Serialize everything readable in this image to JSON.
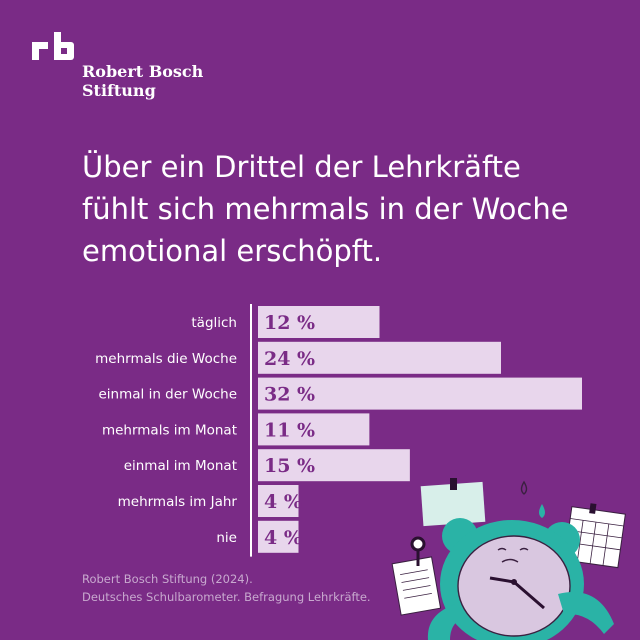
{
  "brand": {
    "line1": "Robert Bosch",
    "line2": "Stiftung"
  },
  "headline": {
    "line1": "Über ein Drittel der Lehrkräfte",
    "line2": "fühlt sich mehrmals in der Woche",
    "line3": "emotional erschöpft."
  },
  "colors": {
    "background": "#7a2b86",
    "bar": "#e8d6ec",
    "bar_label": "#7a2b86",
    "text": "#ffffff",
    "footer": "#c8a9cf",
    "illustration_teal": "#2ab3a6"
  },
  "chart_data": {
    "type": "bar",
    "orientation": "horizontal",
    "categories": [
      "täglich",
      "mehrmals die Woche",
      "einmal in der Woche",
      "mehrmals im Monat",
      "einmal im Monat",
      "mehrmals im Jahr",
      "nie"
    ],
    "values": [
      12,
      24,
      32,
      11,
      15,
      4,
      4
    ],
    "value_labels": [
      "12 %",
      "24 %",
      "32 %",
      "11 %",
      "15 %",
      "4 %",
      "4 %"
    ],
    "unit": "%",
    "xlim": [
      0,
      32
    ],
    "grid": false
  },
  "source": {
    "line1": "Robert Bosch Stiftung (2024).",
    "line2": "Deutsches Schulbarometer. Befragung Lehrkräfte."
  },
  "illustration": {
    "icons": [
      "alarm-clock-icon",
      "calendar-icon",
      "note-icon",
      "pushpin-icon",
      "sweat-drop-icon"
    ]
  }
}
